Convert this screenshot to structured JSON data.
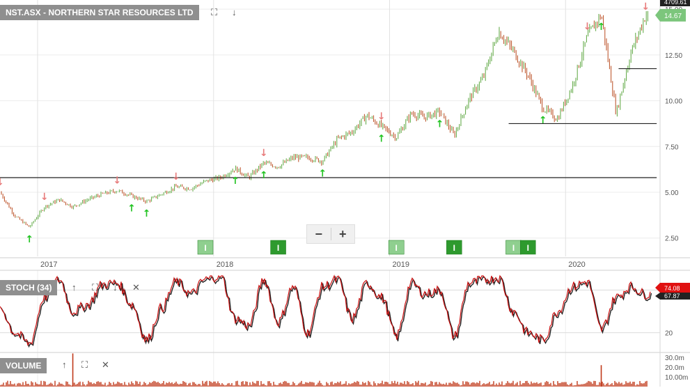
{
  "header": {
    "symbol_label": "NST.ASX - NORTHERN STAR RESOURCES LTD",
    "top_right_value": "4709.61"
  },
  "price_panel": {
    "last_price": "14.67",
    "y_ticks": [
      "15.00",
      "12.50",
      "10.00",
      "7.50",
      "5.00",
      "2.50"
    ],
    "x_ticks": [
      "2017",
      "2018",
      "2019",
      "2020"
    ]
  },
  "zoom": {
    "minus": "−",
    "plus": "+"
  },
  "stoch_panel": {
    "label": "STOCH (34)",
    "value_k": "74.08",
    "value_d": "67.87",
    "y_ticks": [
      "80",
      "20"
    ]
  },
  "volume_panel": {
    "label": "VOLUME",
    "y_ticks": [
      "30.0m",
      "20.0m",
      "10.00m"
    ]
  },
  "colors": {
    "up_candle": "#5aa63d",
    "down_candle": "#b84a1e",
    "up_arrow": "#22c322",
    "down_arrow": "#e87c7c",
    "stoch_k": "#cc1111",
    "volume": "#c0391a",
    "last_price_tag": "#7cc67c",
    "stoch_tag": "#e01111"
  },
  "chart_data": [
    {
      "type": "line",
      "title": "NST.ASX - NORTHERN STAR RESOURCES LTD",
      "x": [
        "2016-10",
        "2016-11",
        "2016-12",
        "2017-01",
        "2017-02",
        "2017-03",
        "2017-04",
        "2017-05",
        "2017-06",
        "2017-07",
        "2017-08",
        "2017-09",
        "2017-10",
        "2017-11",
        "2017-12",
        "2018-01",
        "2018-02",
        "2018-03",
        "2018-04",
        "2018-05",
        "2018-06",
        "2018-07",
        "2018-08",
        "2018-09",
        "2018-10",
        "2018-11",
        "2018-12",
        "2019-01",
        "2019-02",
        "2019-03",
        "2019-04",
        "2019-05",
        "2019-06",
        "2019-07",
        "2019-08",
        "2019-09",
        "2019-10",
        "2019-11",
        "2019-12",
        "2020-01",
        "2020-02",
        "2020-03",
        "2020-04",
        "2020-05",
        "2020-06"
      ],
      "series": [
        {
          "values": [
            5.0,
            3.7,
            3.1,
            4.2,
            4.6,
            4.2,
            4.6,
            4.9,
            5.1,
            4.8,
            4.5,
            4.9,
            5.3,
            5.2,
            5.6,
            5.8,
            6.3,
            5.8,
            6.6,
            6.4,
            6.9,
            6.9,
            6.7,
            7.9,
            8.3,
            9.2,
            8.6,
            8.0,
            9.3,
            9.1,
            9.4,
            8.1,
            10.1,
            11.3,
            13.8,
            12.7,
            11.4,
            9.6,
            9.0,
            10.8,
            13.5,
            14.7,
            9.3,
            12.6,
            14.67
          ]
        }
      ],
      "ylim": [
        1.5,
        15.5
      ],
      "grid": true,
      "support_lines": [
        5.8,
        8.75,
        11.75
      ],
      "up_arrow_signals": [
        "2016-12",
        "2017-07",
        "2017-08",
        "2018-02",
        "2018-04",
        "2018-08",
        "2018-12",
        "2019-04",
        "2019-11",
        "2020-03"
      ],
      "down_arrow_signals": [
        "2016-10",
        "2017-01",
        "2017-06",
        "2017-10",
        "2018-04",
        "2018-12",
        "2020-02",
        "2020-06"
      ],
      "event_markers": [
        {
          "date": "2017-12",
          "label": "I"
        },
        {
          "date": "2018-05",
          "label": "I"
        },
        {
          "date": "2019-01",
          "label": "I"
        },
        {
          "date": "2019-05",
          "label": "I"
        },
        {
          "date": "2019-09",
          "label": "I"
        },
        {
          "date": "2019-10",
          "label": "I"
        }
      ]
    },
    {
      "type": "line",
      "title": "STOCH (34)",
      "ylim": [
        0,
        100
      ],
      "reference_levels": [
        80,
        20
      ],
      "x": [
        "2016-10",
        "2016-11",
        "2016-12",
        "2017-01",
        "2017-02",
        "2017-03",
        "2017-04",
        "2017-05",
        "2017-06",
        "2017-07",
        "2017-08",
        "2017-09",
        "2017-10",
        "2017-11",
        "2017-12",
        "2018-01",
        "2018-02",
        "2018-03",
        "2018-04",
        "2018-05",
        "2018-06",
        "2018-07",
        "2018-08",
        "2018-09",
        "2018-10",
        "2018-11",
        "2018-12",
        "2019-01",
        "2019-02",
        "2019-03",
        "2019-04",
        "2019-05",
        "2019-06",
        "2019-07",
        "2019-08",
        "2019-09",
        "2019-10",
        "2019-11",
        "2019-12",
        "2020-01",
        "2020-02",
        "2020-03",
        "2020-04",
        "2020-05",
        "2020-06"
      ],
      "series": [
        {
          "values": [
            55,
            20,
            5,
            70,
            95,
            50,
            60,
            88,
            90,
            60,
            10,
            55,
            92,
            75,
            95,
            100,
            40,
            30,
            95,
            35,
            85,
            20,
            85,
            95,
            40,
            90,
            70,
            15,
            90,
            75,
            80,
            15,
            90,
            95,
            98,
            50,
            20,
            10,
            50,
            85,
            92,
            25,
            70,
            85,
            74.08
          ]
        }
      ]
    },
    {
      "type": "bar",
      "title": "VOLUME",
      "ylim": [
        0,
        35
      ],
      "spike_values": [
        {
          "date": "2017-03",
          "value": 34
        },
        {
          "date": "2020-03",
          "value": 22
        }
      ]
    }
  ]
}
